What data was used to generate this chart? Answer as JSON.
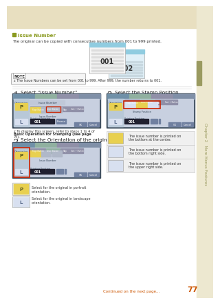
{
  "page_bg": "#ffffff",
  "header_bg": "#e8dfc0",
  "sidebar_bg": "#ede8d0",
  "sidebar_accent": "#9a9a60",
  "title_color": "#8a9a20",
  "text_color": "#333333",
  "bold_text_color": "#222222",
  "footer_text_color": "#cc5500",
  "page_number": "77",
  "chapter_text": "Chapter 2   More Menus Features",
  "section_title": "Issue Number",
  "intro_text": "The original can be copied with consecutive numbers from 001 to 999 printed.",
  "note_text": "z The Issue Numbers can be set from 001 to 999. After 999, the number returns to 001.",
  "step1_num": "1",
  "step1_title": "Select “Issue Number”.",
  "step1_note1": "z To display this screen, refer to steps 1 to 4 of",
  "step1_note2": "Basic Operation for Stamping (see page",
  "step1_note3": "74).",
  "step2_num": "2",
  "step2_title": "Select the Orientation of the original.",
  "step2_portrait_text": "Select for the original in portrait\norientation.",
  "step2_landscape_text": "Select for the original in landscape\norientation.",
  "step3_num": "3",
  "step3_title": "Select the Stamp Position.",
  "step3_desc1": "The issue number is printed on\nthe bottom at the center.",
  "step3_desc2": "The issue number is printed on\nthe bottom right side.",
  "step3_desc3": "The issue number is printed on\nthe upper right side.",
  "footer_text": "Continued on the next page...",
  "img_001": "001",
  "img_002": "002",
  "ui_bg": "#c8d0e0",
  "ui_dark": "#3a4a5a",
  "ui_tab1": "#7090a8",
  "ui_tab2": "#90b0a0",
  "ui_tab3": "#9090a8",
  "ui_tab4": "#8090a8",
  "ui_yellow": "#e8d050",
  "ui_light": "#d8e0f0",
  "ui_black_bar": "#202030",
  "ui_gray_btn": "#8090a8",
  "red_highlight": "#cc2200"
}
